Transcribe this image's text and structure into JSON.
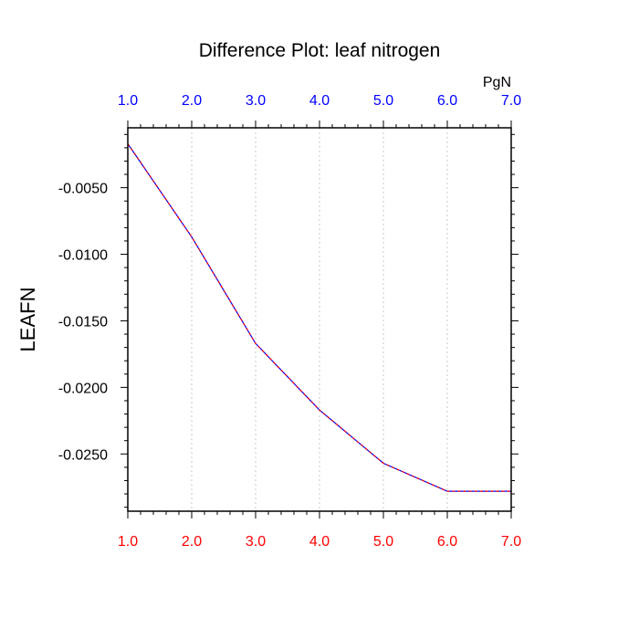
{
  "chart_data": {
    "type": "line",
    "title": "Difference Plot: leaf nitrogen",
    "ylabel": "LEAFN",
    "top_axis_units": "PgN",
    "x": [
      1,
      2,
      3,
      4,
      5,
      6,
      7
    ],
    "xlim": [
      1,
      7
    ],
    "ylim": [
      -0.0293,
      -0.0005
    ],
    "x_ticks": [
      "1.0",
      "2.0",
      "3.0",
      "4.0",
      "5.0",
      "6.0",
      "7.0"
    ],
    "y_ticks": [
      -0.005,
      -0.01,
      -0.015,
      -0.02,
      -0.025
    ],
    "y_tick_labels": [
      "-0.0050",
      "-0.0100",
      "-0.0150",
      "-0.0200",
      "-0.0250"
    ],
    "grid": "vertical dotted",
    "series": [
      {
        "values": [
          -0.0017,
          -0.0087,
          -0.0167,
          -0.0217,
          -0.0257,
          -0.0278,
          -0.0278
        ],
        "colors": [
          "#ff0000",
          "#0000ff"
        ],
        "style": "dashed"
      }
    ]
  },
  "colors": {
    "top_ticks": "#0000ff",
    "bottom_ticks": "#ff0000",
    "axes": "#000000",
    "grid": "#c8c8c8"
  }
}
